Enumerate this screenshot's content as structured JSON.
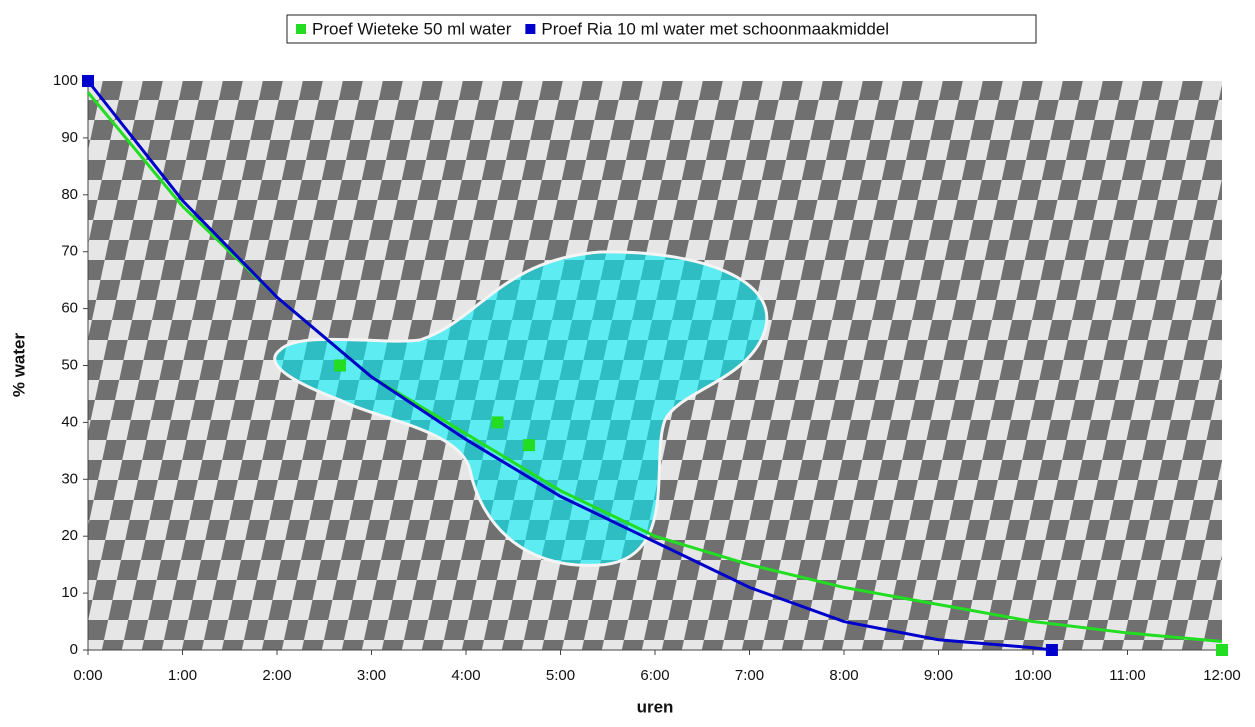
{
  "chart_data": {
    "type": "scatter",
    "x_label": "uren",
    "y_label": "% water",
    "xlim": [
      0,
      12
    ],
    "ylim": [
      0,
      100
    ],
    "xticks": [
      {
        "value": 0,
        "label": "0:00"
      },
      {
        "value": 1,
        "label": "1:00"
      },
      {
        "value": 2,
        "label": "2:00"
      },
      {
        "value": 3,
        "label": "3:00"
      },
      {
        "value": 4,
        "label": "4:00"
      },
      {
        "value": 5,
        "label": "5:00"
      },
      {
        "value": 6,
        "label": "6:00"
      },
      {
        "value": 7,
        "label": "7:00"
      },
      {
        "value": 8,
        "label": "8:00"
      },
      {
        "value": 9,
        "label": "9:00"
      },
      {
        "value": 10,
        "label": "10:00"
      },
      {
        "value": 11,
        "label": "11:00"
      },
      {
        "value": 12,
        "label": "12:00"
      }
    ],
    "yticks": [
      0,
      10,
      20,
      30,
      40,
      50,
      60,
      70,
      80,
      90,
      100
    ],
    "legend": "top",
    "series": [
      {
        "name": "Proef Wieteke 50 ml water",
        "color": "#22dd22",
        "x": [
          0,
          2.667,
          4.333,
          4.667,
          12
        ],
        "values": [
          100,
          50,
          40,
          36,
          0
        ],
        "trend": {
          "x": [
            0,
            1,
            2,
            3,
            4,
            5,
            6,
            7,
            8,
            9,
            10,
            11,
            12
          ],
          "values": [
            98,
            78,
            62,
            48,
            38,
            28,
            20,
            15,
            11,
            8,
            5,
            3,
            1.5
          ]
        }
      },
      {
        "name": "Proef Ria 10 ml water met schoonmaakmiddel",
        "color": "#0000cc",
        "x": [
          0,
          10.2
        ],
        "values": [
          100,
          0
        ],
        "trend": {
          "x": [
            0,
            1,
            2,
            3,
            4,
            5,
            6,
            7,
            8,
            9,
            10,
            10.2
          ],
          "values": [
            100,
            79,
            62,
            48,
            37,
            27,
            19,
            11,
            5,
            1.8,
            0.4,
            0
          ]
        }
      }
    ]
  }
}
